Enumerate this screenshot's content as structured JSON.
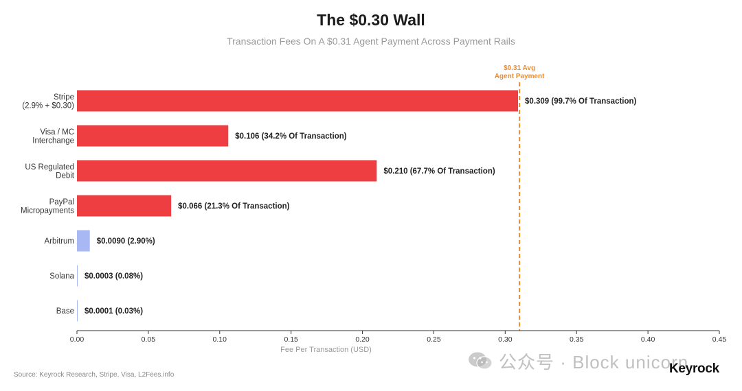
{
  "title": "The $0.30 Wall",
  "subtitle": "Transaction Fees On A $0.31 Agent Payment Across Payment Rails",
  "source": "Source: Keyrock Research, Stripe, Visa, L2Fees.info",
  "brand": "Keyrock",
  "watermark": {
    "text": "公众号 · Block unicorn",
    "icon": "wechat-icon"
  },
  "colors": {
    "traditional": "#ee3e41",
    "crypto": "#a8b8f5",
    "reference_line": "#f08c2c"
  },
  "chart_data": {
    "type": "bar",
    "orientation": "horizontal",
    "title": "The $0.30 Wall",
    "subtitle": "Transaction Fees On A $0.31 Agent Payment Across Payment Rails",
    "xlabel": "Fee Per Transaction (USD)",
    "ylabel": "",
    "xlim": [
      0,
      0.45
    ],
    "x_ticks": [
      "0.00",
      "0.05",
      "0.10",
      "0.15",
      "0.20",
      "0.25",
      "0.30",
      "0.35",
      "0.40",
      "0.45"
    ],
    "x_tick_values": [
      0,
      0.05,
      0.1,
      0.15,
      0.2,
      0.25,
      0.3,
      0.35,
      0.4,
      0.45
    ],
    "grid": false,
    "categories": [
      [
        "Stripe",
        "(2.9% + $0.30)"
      ],
      [
        "Visa / MC",
        "Interchange"
      ],
      [
        "US Regulated",
        "Debit"
      ],
      [
        "PayPal",
        "Micropayments"
      ],
      [
        "Arbitrum"
      ],
      [
        "Solana"
      ],
      [
        "Base"
      ]
    ],
    "values": [
      0.309,
      0.106,
      0.21,
      0.066,
      0.009,
      0.0003,
      0.0001
    ],
    "bar_groups": [
      "traditional",
      "traditional",
      "traditional",
      "traditional",
      "crypto",
      "crypto",
      "crypto"
    ],
    "data_labels": [
      "$0.309  (99.7% Of Transaction)",
      "$0.106  (34.2% Of Transaction)",
      "$0.210  (67.7% Of Transaction)",
      "$0.066  (21.3% Of Transaction)",
      "$0.0090  (2.90%)",
      "$0.0003  (0.08%)",
      "$0.0001  (0.03%)"
    ],
    "reference_line": {
      "value": 0.31,
      "label": [
        "$0.31 Avg",
        "Agent Payment"
      ]
    }
  }
}
